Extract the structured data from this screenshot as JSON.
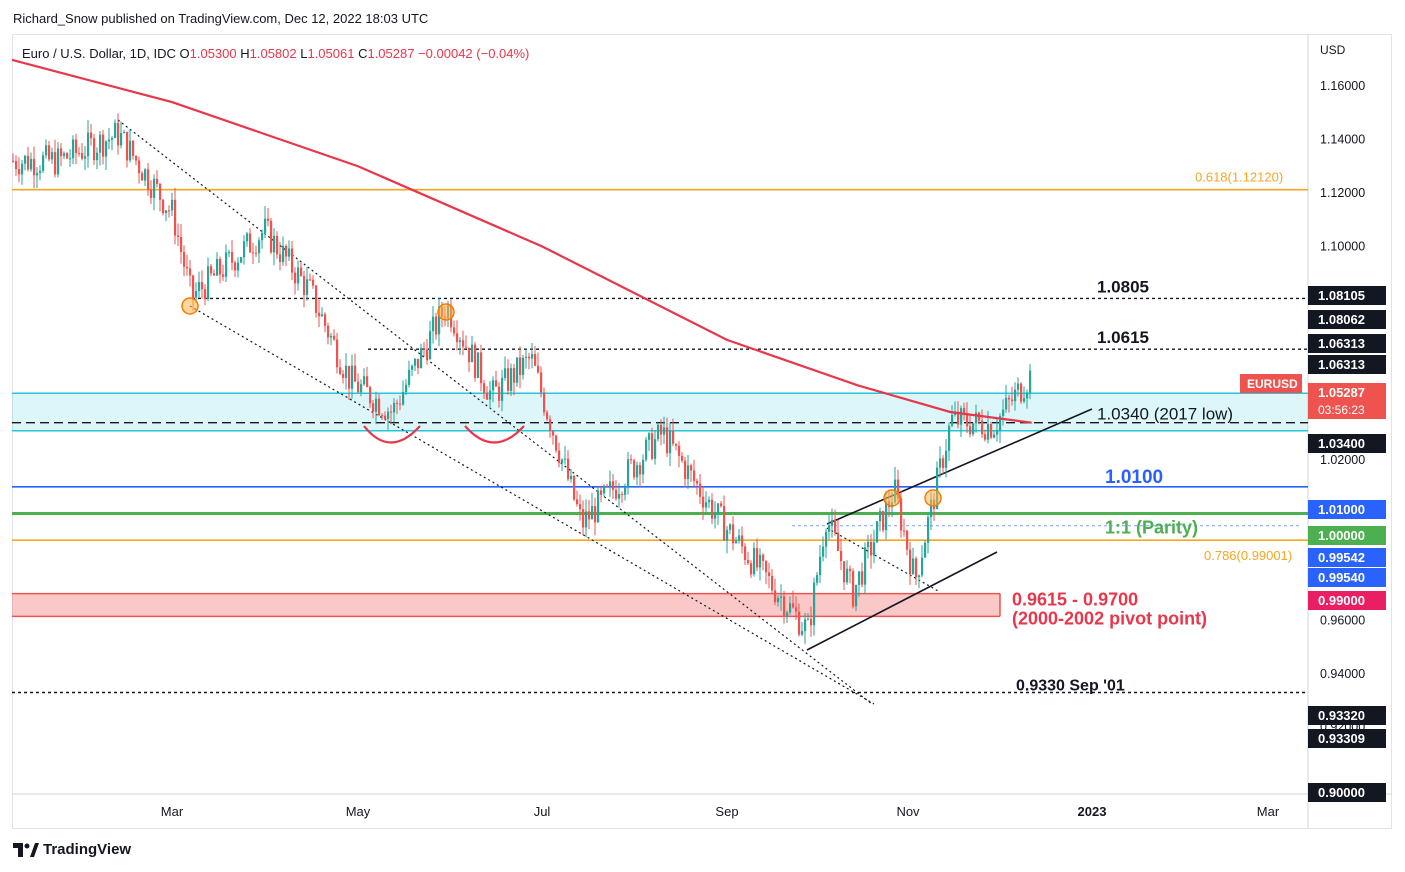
{
  "header": {
    "publisher_line": "Richard_Snow published on TradingView.com, Dec 12, 2022 18:03 UTC",
    "legend": {
      "symbol": "Euro / U.S. Dollar, 1D, IDC",
      "o_label": "O",
      "o_value": "1.05300",
      "h_label": "H",
      "h_value": "1.05802",
      "l_label": "L",
      "l_value": "1.05061",
      "c_label": "C",
      "c_value": "1.05287",
      "change": "−0.00042 (−0.04%)"
    }
  },
  "footer": {
    "brand": "TradingView"
  },
  "chart_data": {
    "type": "candlestick",
    "currency_label": "USD",
    "ylim": [
      0.895,
      1.178
    ],
    "x_tick_labels": [
      "Mar",
      "May",
      "Jul",
      "Sep",
      "Nov",
      "2023",
      "Mar"
    ],
    "x_tick_dates": [
      "2022-03-01",
      "2022-05-01",
      "2022-07-01",
      "2022-09-01",
      "2022-11-01",
      "2023-01-01",
      "2023-03-01"
    ],
    "y_ticks": [
      0.92,
      0.94,
      0.96,
      0.98,
      1.0,
      1.02,
      1.04,
      1.06,
      1.08,
      1.1,
      1.12,
      1.14,
      1.16
    ],
    "y_tick_labels": [
      "0.92000",
      "0.94000",
      "0.96000",
      "",
      "1.00000",
      "1.02000",
      "1.04000",
      "",
      "",
      "1.10000",
      "1.12000",
      "1.14000",
      "1.16000"
    ],
    "series": [
      {
        "type": "candlestick",
        "up_color": "#26a69a",
        "down_color": "#ef5350",
        "monthly_closes": [
          {
            "date": "2022-01-20",
            "close": 1.132
          },
          {
            "date": "2022-02-10",
            "close": 1.142
          },
          {
            "date": "2022-03-01",
            "close": 1.112
          },
          {
            "date": "2022-03-07",
            "close": 1.081
          },
          {
            "date": "2022-03-31",
            "close": 1.106
          },
          {
            "date": "2022-04-15",
            "close": 1.083
          },
          {
            "date": "2022-04-28",
            "close": 1.05
          },
          {
            "date": "2022-05-12",
            "close": 1.038
          },
          {
            "date": "2022-05-30",
            "close": 1.078
          },
          {
            "date": "2022-06-14",
            "close": 1.044
          },
          {
            "date": "2022-06-27",
            "close": 1.058
          },
          {
            "date": "2022-07-14",
            "close": 0.996
          },
          {
            "date": "2022-08-10",
            "close": 1.03
          },
          {
            "date": "2022-08-29",
            "close": 0.998
          },
          {
            "date": "2022-09-28",
            "close": 0.956
          },
          {
            "date": "2022-10-04",
            "close": 0.999
          },
          {
            "date": "2022-10-13",
            "close": 0.97
          },
          {
            "date": "2022-10-27",
            "close": 1.009
          },
          {
            "date": "2022-11-03",
            "close": 0.975
          },
          {
            "date": "2022-11-15",
            "close": 1.035
          },
          {
            "date": "2022-11-29",
            "close": 1.033
          },
          {
            "date": "2022-12-12",
            "close": 1.0529
          }
        ]
      },
      {
        "type": "line",
        "color": "#e8364b",
        "points": [
          {
            "date": "2022-01-01",
            "value": 1.1708
          },
          {
            "date": "2022-03-01",
            "value": 1.154
          },
          {
            "date": "2022-05-01",
            "value": 1.13
          },
          {
            "date": "2022-07-01",
            "value": 1.1
          },
          {
            "date": "2022-09-01",
            "value": 1.065
          },
          {
            "date": "2022-10-15",
            "value": 1.048
          },
          {
            "date": "2022-11-15",
            "value": 1.038
          },
          {
            "date": "2022-12-12",
            "value": 1.034
          }
        ]
      }
    ],
    "horizontal_levels": [
      {
        "value": 1.1212,
        "color": "#f5a623",
        "label": "0.618(1.12120)",
        "style": "solid"
      },
      {
        "value": 1.0805,
        "color": "#131722",
        "label": "1.0805",
        "style": "dotted"
      },
      {
        "value": 1.0615,
        "color": "#131722",
        "label": "1.0615",
        "style": "dotted"
      },
      {
        "value": 1.034,
        "color": "#131722",
        "label": "1.0340 (2017 low)",
        "style": "dashed"
      },
      {
        "value": 1.01,
        "color": "#2962ff",
        "label": "1.0100",
        "style": "solid"
      },
      {
        "value": 1.0,
        "color": "#4caf50",
        "label": "1:1 (Parity)",
        "style": "solid"
      },
      {
        "value": 0.99,
        "color": "#f5a623",
        "label": "0.786(0.99001)",
        "style": "solid"
      },
      {
        "value": 0.933,
        "color": "#131722",
        "label": "0.9330 Sep '01",
        "style": "dotted"
      }
    ],
    "zones": [
      {
        "from": 1.031,
        "to": 1.045,
        "color": "#26c6da",
        "label": ""
      },
      {
        "from": 0.9615,
        "to": 0.97,
        "color": "#ef5350",
        "label": "0.9615 - 0.9700",
        "sublabel": "(2000-2002 pivot point)"
      }
    ],
    "price_badges": [
      {
        "value": 1.08105,
        "text": "1.08105",
        "bg": "#131722",
        "fg": "#ffffff"
      },
      {
        "value": 1.08062,
        "text": "1.08062",
        "bg": "#131722",
        "fg": "#ffffff"
      },
      {
        "value": 1.06313,
        "text": "1.06313",
        "bg": "#131722",
        "fg": "#ffffff"
      },
      {
        "value": 1.06313,
        "text": "1.06313",
        "bg": "#131722",
        "fg": "#ffffff"
      },
      {
        "value": 1.05287,
        "text": "1.05287",
        "bg": "#ef5350",
        "fg": "#ffffff",
        "extra": "03:56:23"
      },
      {
        "value": 1.034,
        "text": "1.03400",
        "bg": "#131722",
        "fg": "#ffffff"
      },
      {
        "value": 1.01,
        "text": "1.01000",
        "bg": "#2962ff",
        "fg": "#ffffff"
      },
      {
        "value": 1.0,
        "text": "1.00000",
        "bg": "#4caf50",
        "fg": "#ffffff"
      },
      {
        "value": 0.99542,
        "text": "0.99542",
        "bg": "#2962ff",
        "fg": "#ffffff"
      },
      {
        "value": 0.9954,
        "text": "0.99540",
        "bg": "#2962ff",
        "fg": "#ffffff"
      },
      {
        "value": 0.99,
        "text": "0.99000",
        "bg": "#e91e63",
        "fg": "#ffffff"
      },
      {
        "value": 0.9332,
        "text": "0.93320",
        "bg": "#131722",
        "fg": "#ffffff"
      },
      {
        "value": 0.93309,
        "text": "0.93309",
        "bg": "#131722",
        "fg": "#ffffff"
      },
      {
        "value": 0.9,
        "text": "0.90000",
        "bg": "#131722",
        "fg": "#ffffff"
      }
    ],
    "symbol_tag": {
      "text": "EURUSD",
      "bg": "#ef5350",
      "fg": "#ffffff"
    }
  }
}
